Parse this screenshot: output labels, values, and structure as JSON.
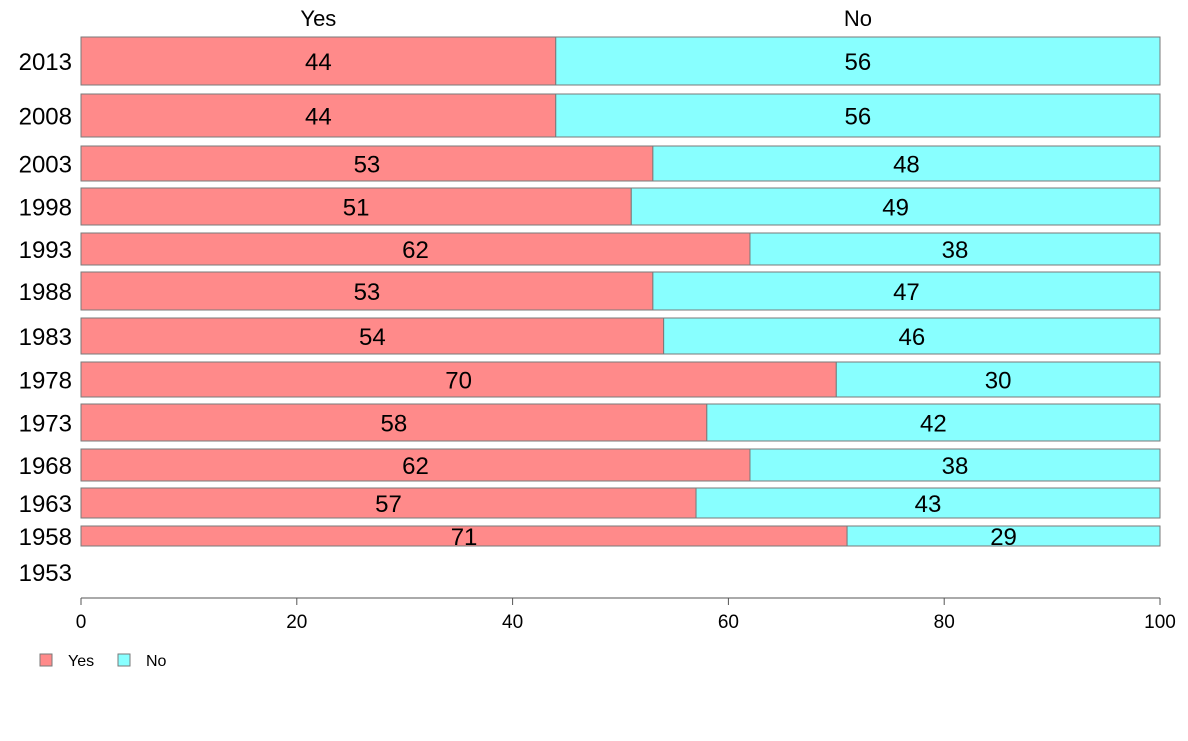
{
  "chart_data": {
    "type": "bar",
    "orientation": "horizontal",
    "stacked": true,
    "categories": [
      "2013",
      "2008",
      "2003",
      "1998",
      "1993",
      "1988",
      "1983",
      "1978",
      "1973",
      "1968",
      "1963",
      "1958",
      "1953"
    ],
    "series": [
      {
        "name": "Yes",
        "color": "#FF8A8A",
        "values": [
          44,
          44,
          53,
          51,
          62,
          53,
          54,
          70,
          58,
          62,
          57,
          71,
          null
        ],
        "label_values": [
          "44",
          "44",
          "53",
          "51",
          "62",
          "53",
          "54",
          "70",
          "58",
          "62",
          "57",
          "71",
          ""
        ]
      },
      {
        "name": "No",
        "color": "#88FFFF",
        "values": [
          56,
          56,
          48,
          49,
          38,
          47,
          46,
          30,
          42,
          38,
          43,
          29,
          null
        ],
        "label_values": [
          "56",
          "56",
          "48",
          "49",
          "38",
          "47",
          "46",
          "30",
          "42",
          "38",
          "43",
          "29",
          ""
        ]
      }
    ],
    "column_headers": [
      "Yes",
      "No"
    ],
    "x_ticks": [
      "0",
      "20",
      "40",
      "60",
      "80",
      "100"
    ],
    "xlim": [
      0,
      100
    ],
    "xlabel": "",
    "ylabel": "",
    "grid": false,
    "legend_position": "bottom-left",
    "legend_entries": [
      "Yes",
      "No"
    ]
  }
}
